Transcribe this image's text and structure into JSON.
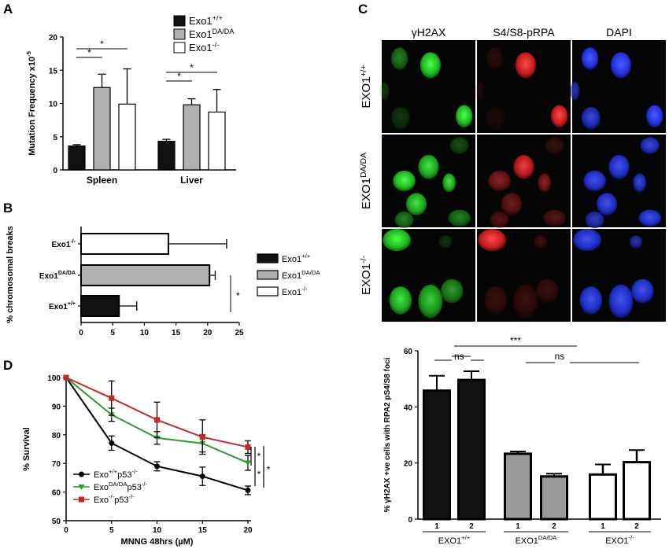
{
  "panel_letters": {
    "a": "A",
    "b": "B",
    "c": "C",
    "d": "D"
  },
  "chart_data": [
    {
      "panel": "A",
      "type": "bar",
      "ylabel": "Mutation Frequency x10",
      "ylabel_sup": "-5",
      "ylim": [
        0,
        20
      ],
      "yticks": [
        "0",
        "5",
        "10",
        "15",
        "20"
      ],
      "categories": [
        "Spleen",
        "Liver"
      ],
      "series": [
        {
          "name": "Exo1",
          "sup": "+/+",
          "values": [
            3.6,
            4.3
          ],
          "errors": [
            0.2,
            0.3
          ],
          "color": "#111111"
        },
        {
          "name": "Exo1",
          "sup": "DA/DA",
          "values": [
            12.4,
            9.8
          ],
          "errors": [
            2.0,
            0.9
          ],
          "color": "#b0b0b0"
        },
        {
          "name": "Exo1",
          "sup": "-/-",
          "values": [
            9.9,
            8.7
          ],
          "errors": [
            5.3,
            3.4
          ],
          "color": "#ffffff"
        }
      ],
      "significance": [
        "*",
        "*",
        "*",
        "*"
      ]
    },
    {
      "panel": "B",
      "type": "bar",
      "orientation": "horizontal",
      "xlabel": "% chromosomal breaks",
      "xlim": [
        0,
        25
      ],
      "xticks": [
        "0",
        "5",
        "10",
        "15",
        "20",
        "25"
      ],
      "categories": [
        {
          "name": "Exo1",
          "sup": "-/-"
        },
        {
          "name": "Exo1",
          "sup": "DA/DA"
        },
        {
          "name": "Exo1",
          "sup": "+/+"
        }
      ],
      "values": [
        13.8,
        20.3,
        6.0
      ],
      "errors": [
        9.2,
        0.9,
        2.8
      ],
      "colors": [
        "#ffffff",
        "#b0b0b0",
        "#111111"
      ],
      "legend": [
        {
          "name": "Exo1",
          "sup": "+/+",
          "color": "#111111"
        },
        {
          "name": "Exo1",
          "sup": "DA/DA",
          "color": "#b0b0b0"
        },
        {
          "name": "Exo1",
          "sup": "-/-",
          "color": "#ffffff"
        }
      ],
      "significance": "*"
    },
    {
      "panel": "C",
      "type": "bar",
      "ylabel": "% γH2AX +ve cells with RPA2 pS4/S8 foci",
      "ylim": [
        0,
        60
      ],
      "yticks": [
        "0",
        "20",
        "40",
        "60"
      ],
      "categories": [
        "1",
        "2",
        "1",
        "2",
        "1",
        "2"
      ],
      "groups": [
        {
          "name": "EXO1",
          "sup": "+/+"
        },
        {
          "name": "EXO1",
          "sup": "DA/DA"
        },
        {
          "name": "EXO1",
          "sup": "-/-"
        }
      ],
      "values": [
        45.8,
        49.6,
        23.3,
        15.2,
        15.9,
        20.3
      ],
      "errors": [
        5.3,
        3.1,
        0.8,
        1.0,
        3.6,
        4.3
      ],
      "colors": [
        "#111111",
        "#111111",
        "#9a9a9a",
        "#9a9a9a",
        "#ffffff",
        "#ffffff"
      ],
      "significance": [
        "ns",
        "***",
        "ns"
      ]
    },
    {
      "panel": "D",
      "type": "line",
      "xlabel": "MNNG 48hrs (µM)",
      "ylabel": "% Survival",
      "xlim": [
        0,
        20
      ],
      "ylim": [
        50,
        100
      ],
      "xticks": [
        "0",
        "5",
        "10",
        "15",
        "20"
      ],
      "yticks": [
        "50",
        "60",
        "70",
        "80",
        "90",
        "100"
      ],
      "x": [
        0,
        5,
        10,
        15,
        20
      ],
      "series": [
        {
          "name": "Exo",
          "sup1": "+/+",
          "mid": "p53",
          "sup2": "-/-",
          "values": [
            100,
            77.1,
            69.0,
            65.5,
            60.6
          ],
          "errors": [
            0,
            2.5,
            1.6,
            3.2,
            1.5
          ],
          "color": "#000000",
          "marker": "circle"
        },
        {
          "name": "Exo",
          "sup1": "DA/DA",
          "mid": "p53",
          "sup2": "-/-",
          "values": [
            100,
            87.0,
            78.9,
            77.0,
            70.2
          ],
          "errors": [
            0,
            2.3,
            2.2,
            3.0,
            2.6
          ],
          "color": "#2a9d2a",
          "marker": "triangle"
        },
        {
          "name": "Exo",
          "sup1": "-/-",
          "mid": "p53",
          "sup2": "-/-",
          "values": [
            100,
            92.8,
            85.2,
            79.2,
            75.7
          ],
          "errors": [
            0,
            6.0,
            6.2,
            6.0,
            2.2
          ],
          "color": "#c62828",
          "marker": "square"
        }
      ],
      "significance": [
        "*",
        "*",
        "*"
      ]
    }
  ],
  "microscopy": {
    "columns": [
      "γH2AX",
      "S4/S8-pRPA",
      "DAPI"
    ],
    "rows": [
      {
        "name": "EXO1",
        "sup": "+/+"
      },
      {
        "name": "EXO1",
        "sup": "DA/DA"
      },
      {
        "name": "EXO1",
        "sup": "-/-"
      }
    ],
    "channel_colors": [
      "#22d022",
      "#e02828",
      "#3344ff"
    ]
  }
}
